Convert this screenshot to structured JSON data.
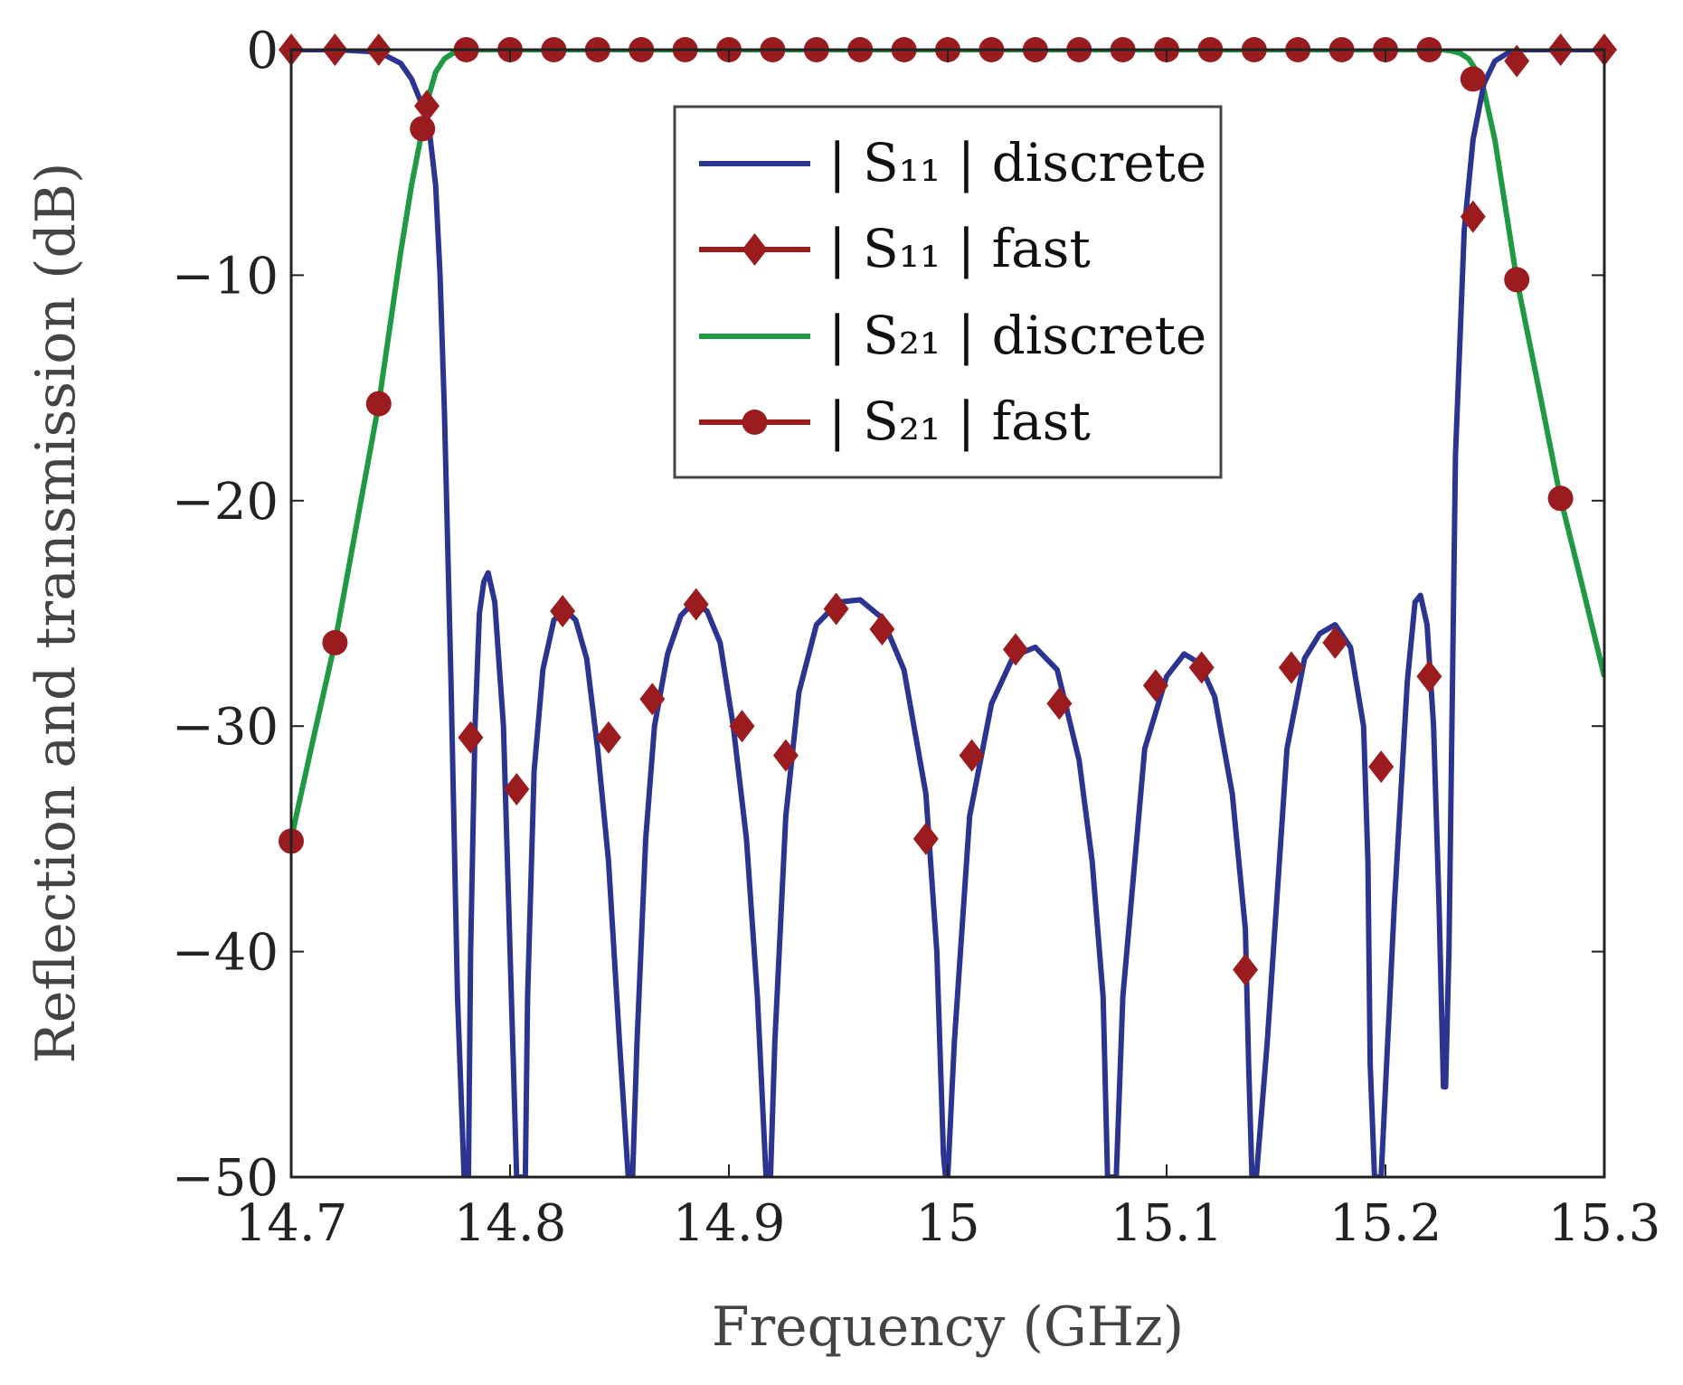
{
  "chart_data": {
    "type": "line",
    "title": "",
    "xlabel": "Frequency (GHz)",
    "ylabel": "Reflection and transmission (dB)",
    "xlim": [
      14.7,
      15.3
    ],
    "ylim": [
      -50,
      0
    ],
    "xticks": [
      14.7,
      14.8,
      14.9,
      15,
      15.1,
      15.2,
      15.3
    ],
    "xtick_labels": [
      "14.7",
      "14.8",
      "14.9",
      "15",
      "15.1",
      "15.2",
      "15.3"
    ],
    "yticks": [
      0,
      -10,
      -20,
      -30,
      -40,
      -50
    ],
    "ytick_labels": [
      "0",
      "−10",
      "−20",
      "−30",
      "−40",
      "−50"
    ],
    "grid": false,
    "legend_position": "top-center",
    "colors": {
      "s11_discrete": "#2b3591",
      "fast": "#9b1c1f",
      "s21_discrete": "#1d9a43",
      "axis": "#222222"
    },
    "series": [
      {
        "name": "|S11| discrete",
        "legend_label": "| S₁₁ | discrete",
        "style": "line",
        "x": [
          14.7,
          14.72,
          14.74,
          14.75,
          14.755,
          14.76,
          14.763,
          14.766,
          14.768,
          14.77,
          14.773,
          14.776,
          14.779,
          14.7805,
          14.781,
          14.782,
          14.784,
          14.786,
          14.788,
          14.79,
          14.793,
          14.797,
          14.8,
          14.803,
          14.805,
          14.806,
          14.807,
          14.808,
          14.811,
          14.815,
          14.82,
          14.825,
          14.83,
          14.835,
          14.84,
          14.845,
          14.85,
          14.854,
          14.856,
          14.858,
          14.862,
          14.866,
          14.872,
          14.878,
          14.884,
          14.89,
          14.896,
          14.902,
          14.908,
          14.913,
          14.917,
          14.919,
          14.921,
          14.926,
          14.932,
          14.94,
          14.95,
          14.96,
          14.97,
          14.98,
          14.99,
          14.995,
          14.998,
          14.999,
          15.0,
          15.003,
          15.01,
          15.02,
          15.03,
          15.04,
          15.05,
          15.06,
          15.066,
          15.071,
          15.073,
          15.075,
          15.077,
          15.08,
          15.09,
          15.1,
          15.108,
          15.115,
          15.122,
          15.13,
          15.136,
          15.1375,
          15.139,
          15.141,
          15.146,
          15.155,
          15.163,
          15.17,
          15.177,
          15.184,
          15.19,
          15.192,
          15.193,
          15.195,
          15.198,
          15.204,
          15.21,
          15.2135,
          15.216,
          15.219,
          15.222,
          15.2245,
          15.2265,
          15.2275,
          15.229,
          15.232,
          15.236,
          15.24,
          15.245,
          15.25,
          15.255,
          15.26,
          15.27,
          15.28,
          15.3
        ],
        "y": [
          0,
          0,
          -0.1,
          -0.6,
          -1.3,
          -2.5,
          -3.5,
          -6,
          -10,
          -16,
          -28,
          -42,
          -50,
          -50,
          -50,
          -40,
          -30,
          -25,
          -23.6,
          -23.2,
          -24.5,
          -30,
          -40,
          -50,
          -50,
          -50,
          -50,
          -42,
          -32,
          -27.5,
          -25.3,
          -24.8,
          -25.3,
          -27,
          -31,
          -36,
          -44,
          -50,
          -50,
          -44,
          -35,
          -30,
          -26.8,
          -25.1,
          -24.5,
          -24.9,
          -26.3,
          -30,
          -35,
          -42,
          -50,
          -50,
          -44,
          -34,
          -28.5,
          -25.5,
          -24.5,
          -24.4,
          -25.2,
          -27.5,
          -33,
          -40,
          -49,
          -50,
          -50,
          -44,
          -34,
          -29,
          -26.9,
          -26.5,
          -27.5,
          -31.5,
          -36,
          -42,
          -50,
          -50,
          -50,
          -42,
          -31,
          -27.8,
          -26.8,
          -27.2,
          -28.7,
          -33,
          -39,
          -45,
          -50,
          -50,
          -44,
          -31,
          -27,
          -25.9,
          -25.5,
          -26.5,
          -30,
          -36,
          -45,
          -50,
          -50,
          -38,
          -28,
          -24.5,
          -24.2,
          -25.5,
          -30,
          -38,
          -46,
          -46,
          -40,
          -18,
          -8,
          -4,
          -1.5,
          -0.5,
          -0.2,
          0,
          0,
          0,
          0
        ]
      },
      {
        "name": "|S11| fast",
        "legend_label": "| S₁₁ | fast",
        "style": "marker-diamond",
        "x": [
          14.7,
          14.72,
          14.74,
          14.762,
          14.782,
          14.803,
          14.824,
          14.845,
          14.865,
          14.885,
          14.906,
          14.926,
          14.949,
          14.97,
          14.99,
          15.011,
          15.031,
          15.051,
          15.095,
          15.116,
          15.136,
          15.157,
          15.177,
          15.198,
          15.22,
          15.24,
          15.26,
          15.28,
          15.3
        ],
        "y": [
          0,
          0,
          0,
          -2.5,
          -30.5,
          -32.8,
          -24.9,
          -30.5,
          -28.8,
          -24.6,
          -30,
          -31.3,
          -24.8,
          -25.7,
          -35,
          -31.3,
          -26.6,
          -29,
          -28.2,
          -27.4,
          -40.8,
          -27.4,
          -26.3,
          -31.8,
          -27.8,
          -7.4,
          -0.5,
          0,
          0
        ]
      },
      {
        "name": "|S21| discrete",
        "legend_label": "| S₂₁ | discrete",
        "style": "line",
        "x": [
          14.7,
          14.71,
          14.72,
          14.73,
          14.74,
          14.75,
          14.755,
          14.76,
          14.763,
          14.766,
          14.77,
          14.774,
          14.778,
          14.78,
          14.79,
          14.8,
          15.0,
          15.2,
          15.22,
          15.226,
          15.23,
          15.234,
          15.238,
          15.242,
          15.245,
          15.25,
          15.26,
          15.27,
          15.28,
          15.29,
          15.3
        ],
        "y": [
          -35,
          -30.6,
          -26.3,
          -21,
          -15.7,
          -9,
          -6,
          -3.5,
          -2,
          -1,
          -0.4,
          -0.15,
          -0.05,
          0,
          0,
          0,
          0,
          0,
          0,
          0,
          -0.05,
          -0.15,
          -0.4,
          -1,
          -1.8,
          -4,
          -10.2,
          -15,
          -19.9,
          -23.8,
          -27.8
        ]
      },
      {
        "name": "|S21| fast",
        "legend_label": "| S₂₁ | fast",
        "style": "marker-circle",
        "x": [
          14.7,
          14.72,
          14.74,
          14.76,
          14.78,
          14.8,
          14.82,
          14.84,
          14.86,
          14.88,
          14.9,
          14.92,
          14.94,
          14.96,
          14.98,
          15.0,
          15.02,
          15.04,
          15.06,
          15.08,
          15.1,
          15.12,
          15.14,
          15.16,
          15.18,
          15.2,
          15.22,
          15.24,
          15.26,
          15.28
        ],
        "y": [
          -35.1,
          -26.3,
          -15.7,
          -3.5,
          0,
          0,
          0,
          0,
          0,
          0,
          0,
          0,
          0,
          0,
          0,
          0,
          0,
          0,
          0,
          0,
          0,
          0,
          0,
          0,
          0,
          0,
          0,
          -1.3,
          -10.2,
          -19.9
        ]
      }
    ]
  }
}
